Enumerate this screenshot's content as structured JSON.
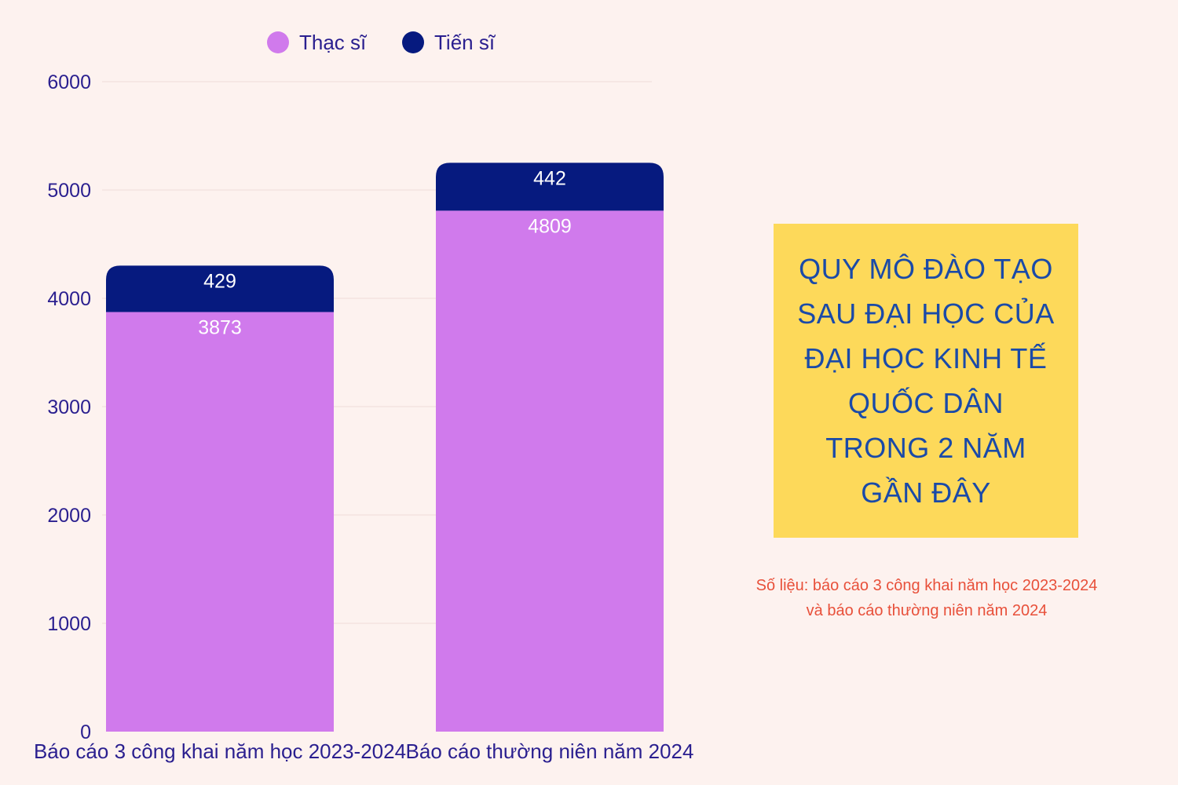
{
  "chart_data": {
    "type": "bar",
    "stacked": true,
    "categories": [
      "Báo cáo 3 công khai năm học 2023-2024",
      "Báo cáo thường niên năm 2024"
    ],
    "series": [
      {
        "name": "Thạc sĩ",
        "values": [
          3873,
          4809
        ],
        "color": "#d07aec"
      },
      {
        "name": "Tiến sĩ",
        "values": [
          429,
          442
        ],
        "color": "#061a7f"
      }
    ],
    "ylim": [
      0,
      6000
    ],
    "yticks": [
      0,
      1000,
      2000,
      3000,
      4000,
      5000,
      6000
    ],
    "grid": true,
    "legend_position": "top"
  },
  "title_box": {
    "lines": [
      "QUY MÔ ĐÀO TẠO",
      "SAU ĐẠI HỌC CỦA",
      "ĐẠI HỌC KINH TẾ",
      "QUỐC DÂN",
      "TRONG 2 NĂM",
      "GẦN ĐÂY"
    ],
    "background": "#fdd95a",
    "color": "#1a4aa8"
  },
  "source_note": {
    "lines": [
      "Số liệu: báo cáo 3 công khai năm học 2023-2024",
      "và báo cáo thường niên năm 2024"
    ],
    "color": "#e8503a"
  }
}
